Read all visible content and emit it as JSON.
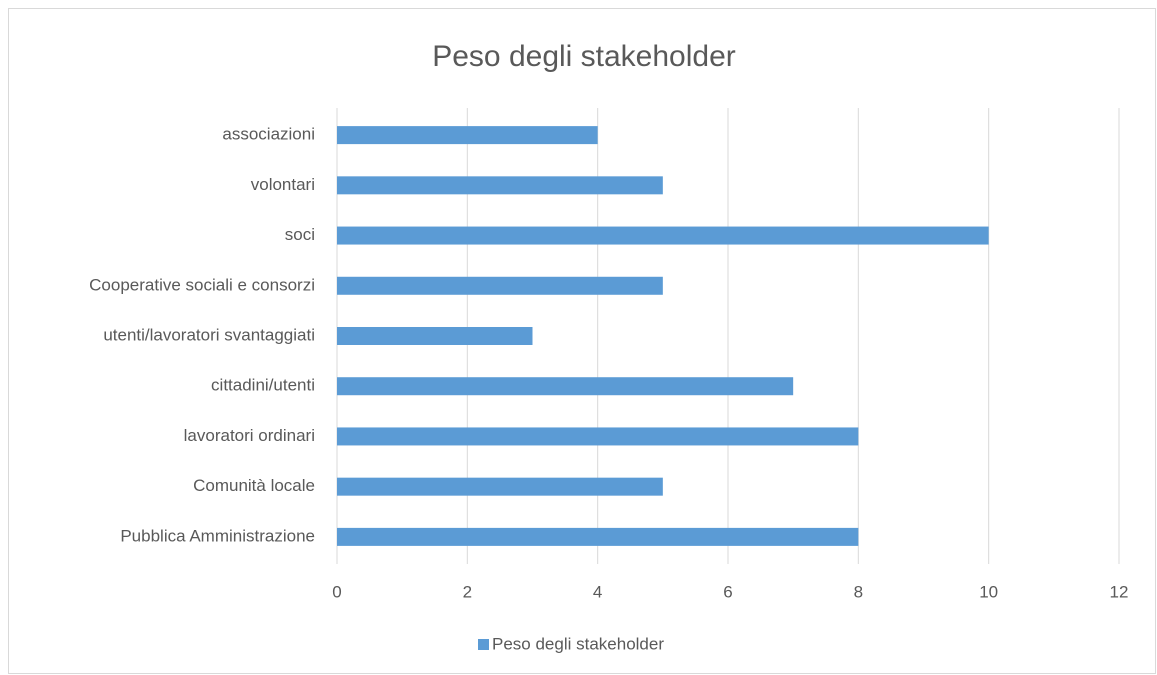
{
  "chart_data": {
    "type": "bar",
    "orientation": "horizontal",
    "title": "Peso degli stakeholder",
    "categories": [
      "associazioni",
      "volontari",
      "soci",
      "Cooperative sociali e consorzi",
      "utenti/lavoratori svantaggiati",
      "cittadini/utenti",
      "lavoratori ordinari",
      "Comunità locale",
      "Pubblica Amministrazione"
    ],
    "series": [
      {
        "name": "Peso degli stakeholder",
        "color": "#5b9bd5",
        "values": [
          4,
          5,
          10,
          5,
          3,
          7,
          8,
          5,
          8
        ]
      }
    ],
    "xlim": [
      0,
      12
    ],
    "xticks": [
      0,
      2,
      4,
      6,
      8,
      10,
      12
    ],
    "grid": true,
    "legend": "bottom"
  }
}
